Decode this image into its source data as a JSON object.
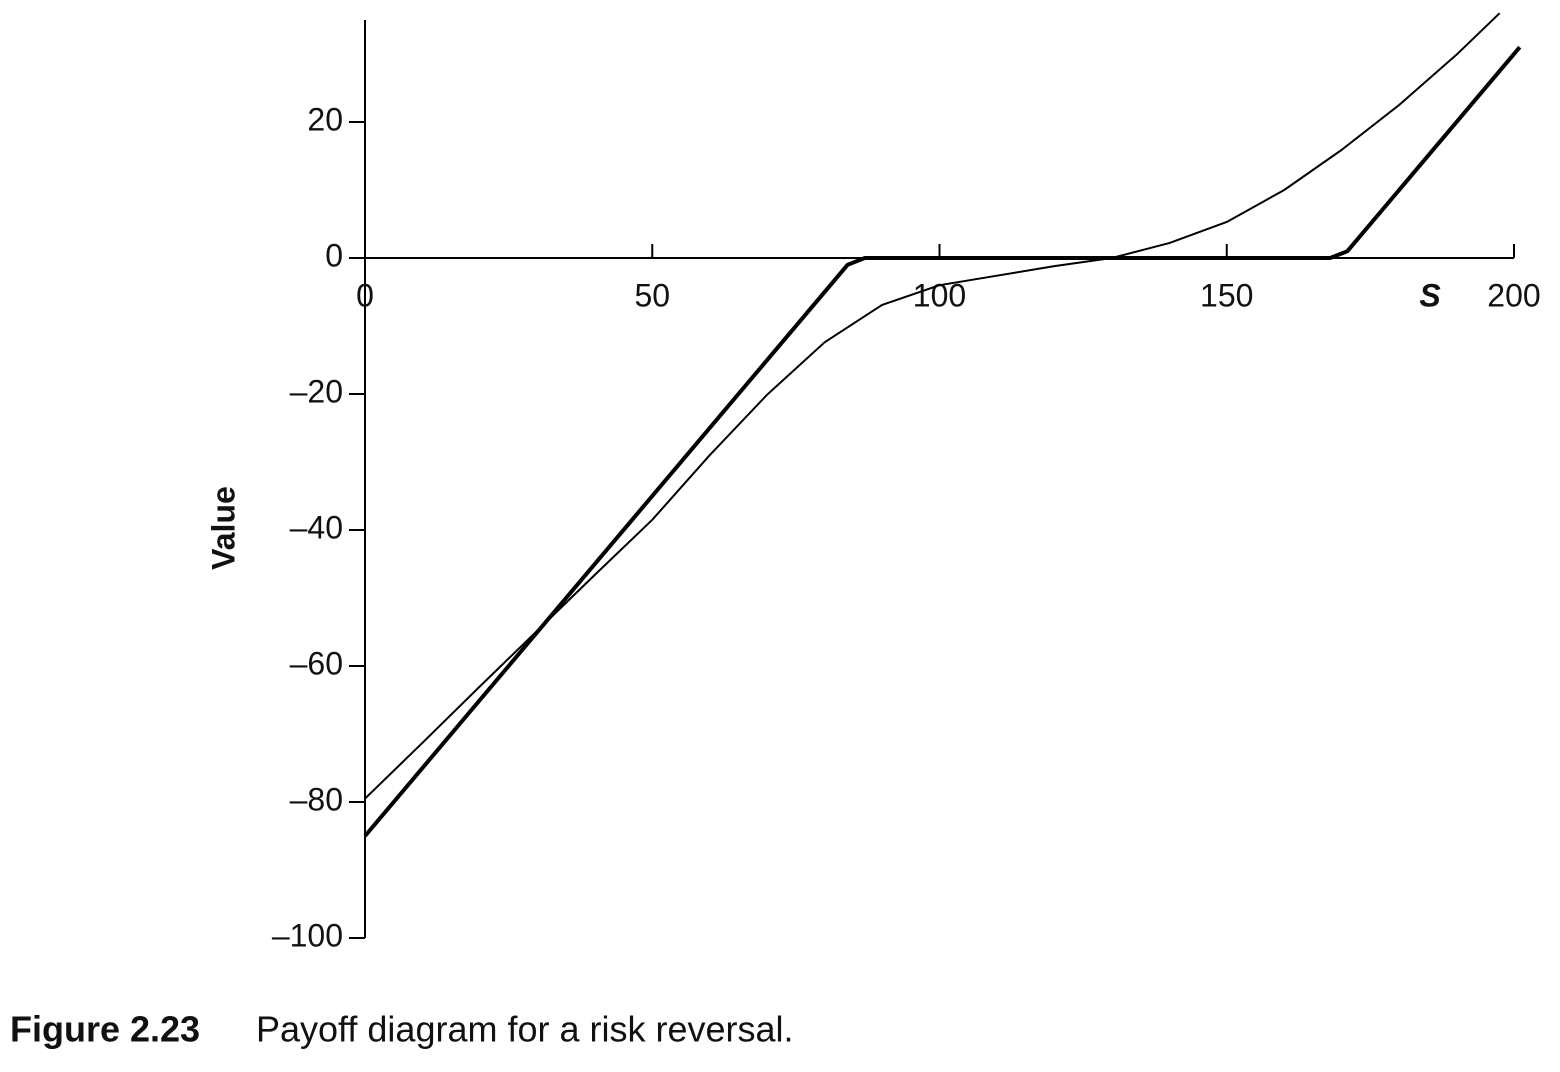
{
  "chart_data": {
    "type": "line",
    "xlabel": "S",
    "ylabel": "Value",
    "caption": {
      "label": "Figure 2.23",
      "text": "Payoff diagram for a risk reversal."
    },
    "xlim": [
      0,
      200
    ],
    "ylim": [
      -100,
      35
    ],
    "xticks": [
      0,
      50,
      100,
      150,
      200
    ],
    "yticks": [
      20,
      0,
      {
        "value": -20,
        "label": "–20"
      },
      {
        "value": -40,
        "label": "–40"
      },
      {
        "value": -60,
        "label": "–60"
      },
      {
        "value": -80,
        "label": "–80"
      },
      {
        "value": -100,
        "label": "–100"
      }
    ],
    "series": [
      {
        "color": "#000000",
        "width": 4,
        "x": [
          0,
          84,
          87,
          168,
          171,
          201
        ],
        "values": [
          -85,
          -1,
          0,
          0,
          1,
          31
        ]
      },
      {
        "color": "#000000",
        "width": 2,
        "x": [
          0,
          10,
          20,
          30,
          40,
          50,
          60,
          70,
          80,
          90,
          100,
          110,
          120,
          130,
          140,
          150,
          160,
          170,
          180,
          190,
          197.5
        ],
        "values": [
          -79.5,
          -71.3,
          -63,
          -54.8,
          -46.6,
          -38.5,
          -29,
          -20.1,
          -12.4,
          -6.9,
          -4,
          -2.6,
          -1.2,
          0,
          2.2,
          5.3,
          10,
          15.9,
          22.5,
          29.9,
          36
        ]
      }
    ]
  }
}
